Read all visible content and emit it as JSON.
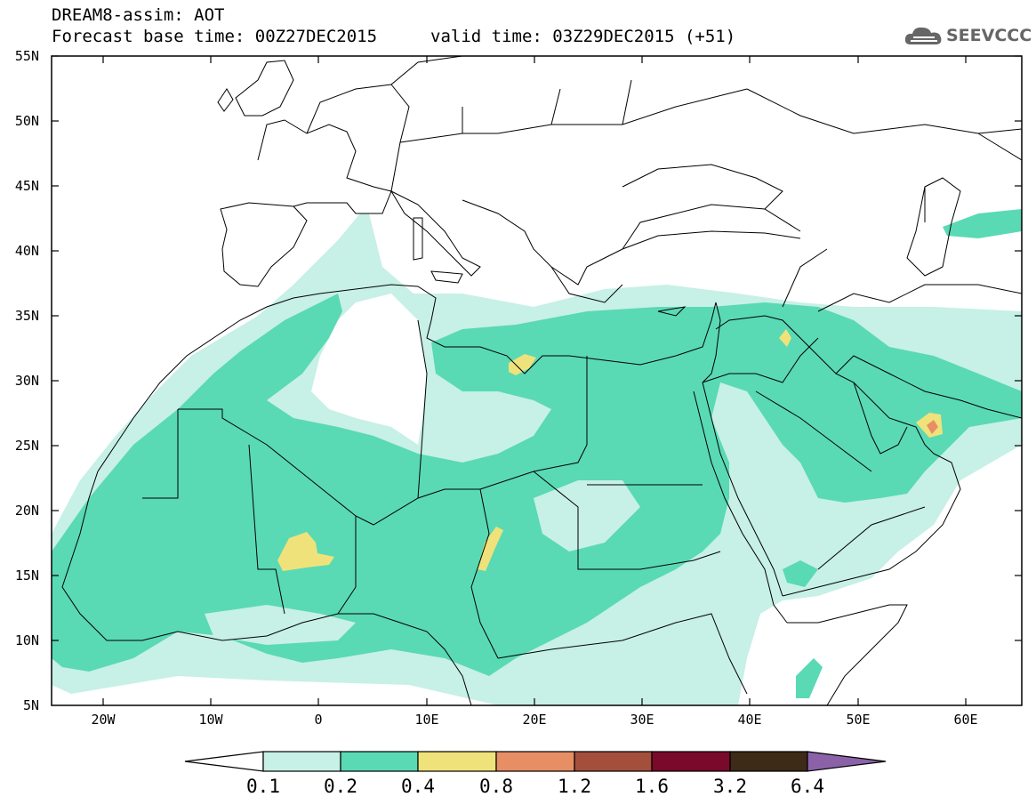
{
  "header": {
    "title": "DREAM8-assim: AOT",
    "base_time": "Forecast base time: 00Z27DEC2015",
    "valid_time": "valid time: 03Z29DEC2015 (+51)"
  },
  "logo": {
    "text": "SEEVCCC",
    "icon": "cloud-icon"
  },
  "map": {
    "lat_labels": [
      "55N",
      "50N",
      "45N",
      "40N",
      "35N",
      "30N",
      "25N",
      "20N",
      "15N",
      "10N",
      "5N"
    ],
    "lon_labels": [
      "20W",
      "10W",
      "0",
      "10E",
      "20E",
      "30E",
      "40E",
      "50E",
      "60E"
    ]
  },
  "colorbar": {
    "labels": [
      "0.1",
      "0.2",
      "0.4",
      "0.8",
      "1.2",
      "1.6",
      "3.2",
      "6.4"
    ],
    "colors": [
      "#ffffff",
      "#c7f0e6",
      "#5ad9b5",
      "#f0e27a",
      "#e88e65",
      "#a44f3c",
      "#7a0a2b",
      "#3d2a17",
      "#8b62a8"
    ]
  }
}
